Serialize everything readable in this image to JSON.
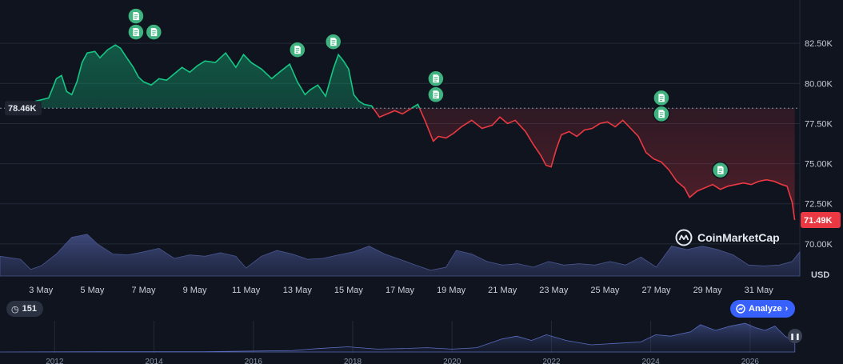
{
  "chart_data": {
    "type": "line",
    "y_unit": "USD",
    "y_ticks": [
      "70.00K",
      "72.50K",
      "75.00K",
      "77.50K",
      "80.00K",
      "82.50K"
    ],
    "y_tick_values": [
      70000,
      72500,
      75000,
      77500,
      80000,
      82500
    ],
    "ylim": [
      68000,
      85200
    ],
    "x_ticks": [
      "3 May",
      "5 May",
      "7 May",
      "9 May",
      "11 May",
      "13 May",
      "15 May",
      "17 May",
      "19 May",
      "21 May",
      "23 May",
      "25 May",
      "27 May",
      "29 May",
      "31 May"
    ],
    "x_tick_days": [
      3,
      5,
      7,
      9,
      11,
      13,
      15,
      17,
      19,
      21,
      23,
      25,
      27,
      29,
      31
    ],
    "xlim_days": [
      1.4,
      32.6
    ],
    "baseline_label": "78.46K",
    "baseline_value": 78460,
    "last_price_label": "71.49K",
    "series": [
      {
        "x_days": [
          2.0,
          2.5,
          2.8,
          3.3,
          3.6,
          3.8,
          4.0,
          4.2,
          4.4,
          4.6,
          4.8,
          5.1,
          5.3,
          5.6,
          5.9,
          6.1,
          6.3,
          6.6,
          6.8,
          7.0,
          7.3,
          7.6,
          7.9,
          8.2,
          8.5,
          8.8,
          9.1,
          9.4,
          9.8,
          10.2,
          10.6,
          10.9,
          11.2,
          11.6,
          12.0,
          12.3,
          12.7,
          13.0,
          13.3,
          13.5,
          13.8,
          14.1,
          14.4,
          14.6,
          14.8,
          15.0,
          15.2,
          15.4,
          15.6,
          15.9,
          16.2,
          16.5,
          16.8,
          17.1,
          17.4,
          17.7,
          18.0,
          18.3,
          18.5,
          18.8,
          19.1,
          19.4,
          19.8,
          20.2,
          20.6,
          20.9,
          21.2,
          21.5,
          21.9,
          22.2,
          22.5,
          22.7,
          22.9,
          23.1,
          23.3,
          23.6,
          23.9,
          24.2,
          24.5,
          24.8,
          25.1,
          25.4,
          25.7,
          26.0,
          26.3,
          26.6,
          26.9,
          27.2,
          27.5,
          27.8,
          28.1,
          28.3,
          28.6,
          28.9,
          29.2,
          29.5,
          29.8,
          30.1,
          30.4,
          30.7,
          31.0,
          31.3,
          31.6,
          31.9,
          32.1,
          32.3,
          32.4
        ],
        "values": [
          78460,
          78550,
          78900,
          79100,
          80300,
          80500,
          79500,
          79300,
          80100,
          81300,
          81900,
          82000,
          81600,
          82100,
          82400,
          82200,
          81700,
          81000,
          80400,
          80100,
          79900,
          80300,
          80200,
          80600,
          81000,
          80700,
          81100,
          81400,
          81300,
          81900,
          81000,
          81800,
          81300,
          80900,
          80300,
          80700,
          81200,
          80100,
          79300,
          79600,
          79900,
          79200,
          80900,
          81800,
          81400,
          80900,
          79300,
          78900,
          78700,
          78600,
          77900,
          78100,
          78300,
          78100,
          78400,
          78700,
          77600,
          76400,
          76700,
          76600,
          76900,
          77300,
          77700,
          77200,
          77400,
          77900,
          77500,
          77700,
          77000,
          76200,
          75500,
          74900,
          74800,
          75900,
          76800,
          77000,
          76700,
          77100,
          77200,
          77500,
          77600,
          77300,
          77700,
          77200,
          76700,
          75700,
          75300,
          75100,
          74600,
          73900,
          73500,
          72900,
          73300,
          73500,
          73700,
          73400,
          73600,
          73700,
          73800,
          73700,
          73900,
          74000,
          73900,
          73700,
          73600,
          72600,
          71490
        ]
      }
    ],
    "volume_series": {
      "x_days": [
        1.4,
        2.2,
        2.6,
        3.0,
        3.6,
        4.2,
        4.8,
        5.2,
        5.8,
        6.4,
        7.0,
        7.6,
        8.2,
        8.8,
        9.4,
        10.0,
        10.6,
        11.0,
        11.6,
        12.2,
        12.8,
        13.4,
        14.0,
        14.6,
        15.2,
        15.8,
        16.4,
        17.0,
        17.6,
        18.2,
        18.8,
        19.2,
        19.8,
        20.4,
        21.0,
        21.6,
        22.2,
        22.8,
        23.4,
        24.0,
        24.6,
        25.2,
        25.8,
        26.4,
        27.0,
        27.6,
        28.2,
        28.8,
        29.4,
        30.0,
        30.6,
        31.2,
        31.8,
        32.3,
        32.6
      ],
      "values": [
        0.45,
        0.35,
        0.15,
        0.2,
        0.5,
        0.85,
        0.95,
        0.7,
        0.5,
        0.45,
        0.55,
        0.6,
        0.4,
        0.45,
        0.45,
        0.5,
        0.45,
        0.15,
        0.45,
        0.55,
        0.5,
        0.35,
        0.4,
        0.45,
        0.55,
        0.65,
        0.5,
        0.35,
        0.25,
        0.1,
        0.2,
        0.55,
        0.5,
        0.3,
        0.25,
        0.25,
        0.2,
        0.3,
        0.25,
        0.25,
        0.25,
        0.3,
        0.25,
        0.4,
        0.2,
        0.65,
        0.6,
        0.65,
        0.6,
        0.45,
        0.25,
        0.2,
        0.25,
        0.3,
        0.55
      ]
    },
    "events": [
      {
        "day": 6.7,
        "value": 84200
      },
      {
        "day": 6.7,
        "value": 83200
      },
      {
        "day": 7.4,
        "value": 83200
      },
      {
        "day": 13.0,
        "value": 82100
      },
      {
        "day": 14.4,
        "value": 82600
      },
      {
        "day": 18.4,
        "value": 80300
      },
      {
        "day": 18.4,
        "value": 79300
      },
      {
        "day": 27.2,
        "value": 79100
      },
      {
        "day": 27.2,
        "value": 78100
      },
      {
        "day": 29.5,
        "value": 74600
      }
    ],
    "overview": {
      "x_ticks": [
        "2012",
        "2014",
        "2016",
        "2018",
        "2020",
        "2022",
        "2024",
        "2026"
      ],
      "x_tick_years": [
        2012,
        2014,
        2016,
        2018,
        2020,
        2022,
        2024,
        2026
      ],
      "xlim_years": [
        2010.9,
        2027.0
      ],
      "years": [
        2010.9,
        2013.0,
        2015.0,
        2016.8,
        2017.3,
        2017.9,
        2018.5,
        2019.0,
        2019.5,
        2020.0,
        2020.5,
        2021.0,
        2021.3,
        2021.6,
        2021.9,
        2022.3,
        2022.8,
        2023.3,
        2023.8,
        2024.1,
        2024.4,
        2024.8,
        2025.0,
        2025.3,
        2025.6,
        2025.9,
        2026.1,
        2026.3,
        2026.5,
        2026.7,
        2026.9
      ],
      "values": [
        0.0,
        0.01,
        0.01,
        0.05,
        0.12,
        0.18,
        0.1,
        0.12,
        0.15,
        0.1,
        0.15,
        0.45,
        0.55,
        0.4,
        0.6,
        0.4,
        0.25,
        0.3,
        0.35,
        0.6,
        0.55,
        0.7,
        0.95,
        0.75,
        0.9,
        1.0,
        0.85,
        0.75,
        0.9,
        0.55,
        0.35
      ]
    },
    "colors": {
      "up": "#16c784",
      "down": "#ea3943",
      "volume": "#3d4a78",
      "overview": "#4d5fa8",
      "background": "#0f141f",
      "grid": "#232a38",
      "event": "#3fb27f",
      "analyze": "#3861fb"
    }
  },
  "ui": {
    "history_count": "151",
    "history_icon": "history-icon",
    "analyze_label": "Analyze",
    "watermark": "CoinMarketCap"
  }
}
